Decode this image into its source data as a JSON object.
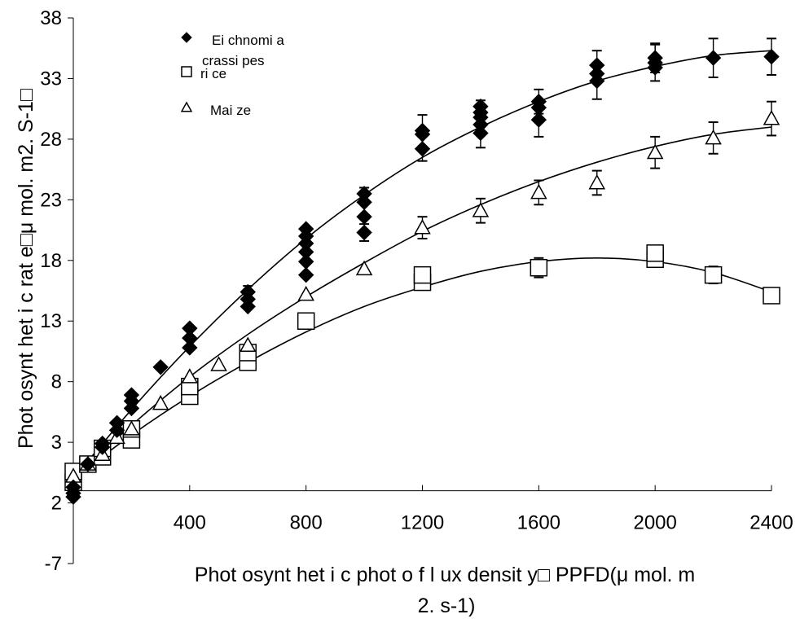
{
  "chart_data": {
    "type": "scatter",
    "xlabel": "Phot osynt het i c phot o f l ux densit y□ PPFD(μ mol. m",
    "xlabel_line2": "2. s-1)",
    "ylabel": "Phot osynt het i c rat e□μ mol. m2. S-1□",
    "x_ticks": [
      "400",
      "800",
      "1200",
      "1600",
      "2000",
      "2400"
    ],
    "y_ticks": [
      "38",
      "33",
      "28",
      "23",
      "18",
      "13",
      "8",
      "3",
      "2",
      "-7"
    ],
    "xlim": [
      0,
      2400
    ],
    "ylim": [
      -7,
      38
    ],
    "legend_position": "top-left",
    "series": [
      {
        "name": "Ei chnomi a crassi pes",
        "marker": "diamond",
        "color": "#000000",
        "x": [
          0,
          0,
          0,
          50,
          100,
          100,
          150,
          150,
          200,
          200,
          200,
          300,
          400,
          400,
          400,
          600,
          600,
          600,
          800,
          800,
          800,
          800,
          800,
          800,
          1000,
          1000,
          1000,
          1000,
          1200,
          1200,
          1200,
          1400,
          1400,
          1400,
          1400,
          1400,
          1600,
          1600,
          1600,
          1800,
          1800,
          1800,
          2000,
          2000,
          2000,
          2200,
          2400
        ],
        "y": [
          -1.5,
          -1.2,
          -0.7,
          1.2,
          2.6,
          2.9,
          4.0,
          4.6,
          5.8,
          6.4,
          6.9,
          9.2,
          10.8,
          11.6,
          12.4,
          14.2,
          14.8,
          15.4,
          16.8,
          17.9,
          18.7,
          19.4,
          20.0,
          20.6,
          20.3,
          21.6,
          22.8,
          23.5,
          27.2,
          28.4,
          28.7,
          28.5,
          29.2,
          29.8,
          30.2,
          30.7,
          29.6,
          30.6,
          31.1,
          32.8,
          33.4,
          34.1,
          33.9,
          34.3,
          34.7,
          34.7,
          34.8
        ]
      },
      {
        "name": "ri ce",
        "marker": "square",
        "color": "#000000",
        "x": [
          0,
          0,
          50,
          100,
          100,
          200,
          200,
          400,
          400,
          600,
          600,
          800,
          1200,
          1200,
          1600,
          2000,
          2000,
          2200,
          2400
        ],
        "y": [
          -0.3,
          0.6,
          1.2,
          1.8,
          2.5,
          3.2,
          4.1,
          6.8,
          7.6,
          9.6,
          10.4,
          13.0,
          16.2,
          16.8,
          17.4,
          18.1,
          18.6,
          16.8,
          15.1
        ]
      },
      {
        "name": "Mai ze",
        "marker": "triangle",
        "color": "#000000",
        "x": [
          0,
          50,
          100,
          150,
          200,
          300,
          400,
          500,
          600,
          800,
          1000,
          1200,
          1400,
          1600,
          1800,
          2000,
          2200,
          2400
        ],
        "y": [
          0.2,
          1.2,
          2.0,
          3.4,
          4.1,
          6.2,
          8.4,
          9.4,
          11.0,
          15.2,
          17.3,
          20.7,
          22.1,
          23.6,
          24.4,
          26.9,
          28.1,
          29.7
        ]
      }
    ],
    "curves": [
      {
        "series": "Ei chnomi a crassi pes",
        "x": [
          0,
          200,
          400,
          600,
          800,
          1000,
          1200,
          1400,
          1600,
          1800,
          2000,
          2200,
          2400
        ],
        "y": [
          0,
          5.7,
          10.9,
          15.6,
          19.8,
          23.4,
          26.5,
          29.0,
          31.1,
          32.8,
          34.0,
          34.9,
          35.3
        ]
      },
      {
        "series": "ri ce",
        "x": [
          0,
          200,
          400,
          600,
          800,
          1000,
          1200,
          1400,
          1600,
          1800,
          2000,
          2200,
          2400
        ],
        "y": [
          0,
          3.6,
          6.8,
          9.6,
          12.1,
          14.2,
          15.8,
          17.1,
          17.9,
          18.2,
          17.9,
          17.0,
          15.4
        ]
      },
      {
        "series": "Mai ze",
        "x": [
          0,
          200,
          400,
          600,
          800,
          1000,
          1200,
          1400,
          1600,
          1800,
          2000,
          2200,
          2400
        ],
        "y": [
          0,
          4.4,
          8.4,
          11.9,
          15.0,
          17.8,
          20.4,
          22.6,
          24.5,
          26.1,
          27.4,
          28.4,
          29.0
        ]
      }
    ],
    "error_bars": {
      "Ei chnomi a crassi pes": [
        {
          "x": 600,
          "y": 15.4,
          "err": 0.5
        },
        {
          "x": 800,
          "y": 20.0,
          "err": 0.5
        },
        {
          "x": 1000,
          "y": 20.3,
          "err": 0.7
        },
        {
          "x": 1000,
          "y": 23.5,
          "err": 0.5
        },
        {
          "x": 1200,
          "y": 27.2,
          "err": 1.0
        },
        {
          "x": 1200,
          "y": 28.7,
          "err": 1.3
        },
        {
          "x": 1400,
          "y": 28.5,
          "err": 1.2
        },
        {
          "x": 1400,
          "y": 30.2,
          "err": 1.0
        },
        {
          "x": 1600,
          "y": 29.6,
          "err": 1.4
        },
        {
          "x": 1600,
          "y": 31.1,
          "err": 1.0
        },
        {
          "x": 1800,
          "y": 32.8,
          "err": 1.5
        },
        {
          "x": 1800,
          "y": 34.1,
          "err": 1.2
        },
        {
          "x": 2000,
          "y": 34.3,
          "err": 1.5
        },
        {
          "x": 2000,
          "y": 34.7,
          "err": 1.2
        },
        {
          "x": 2200,
          "y": 34.7,
          "err": 1.6
        },
        {
          "x": 2400,
          "y": 34.8,
          "err": 1.5
        }
      ],
      "ri ce": [
        {
          "x": 1200,
          "y": 16.5,
          "err": 0.9
        },
        {
          "x": 1600,
          "y": 17.4,
          "err": 0.8
        },
        {
          "x": 2000,
          "y": 18.3,
          "err": 0.8
        },
        {
          "x": 2200,
          "y": 16.8,
          "err": 0.7
        }
      ],
      "Mai ze": [
        {
          "x": 1200,
          "y": 20.7,
          "err": 0.9
        },
        {
          "x": 1400,
          "y": 22.1,
          "err": 1.0
        },
        {
          "x": 1600,
          "y": 23.6,
          "err": 1.0
        },
        {
          "x": 1800,
          "y": 24.4,
          "err": 1.0
        },
        {
          "x": 2000,
          "y": 26.9,
          "err": 1.3
        },
        {
          "x": 2200,
          "y": 28.1,
          "err": 1.3
        },
        {
          "x": 2400,
          "y": 29.7,
          "err": 1.4
        }
      ]
    }
  }
}
